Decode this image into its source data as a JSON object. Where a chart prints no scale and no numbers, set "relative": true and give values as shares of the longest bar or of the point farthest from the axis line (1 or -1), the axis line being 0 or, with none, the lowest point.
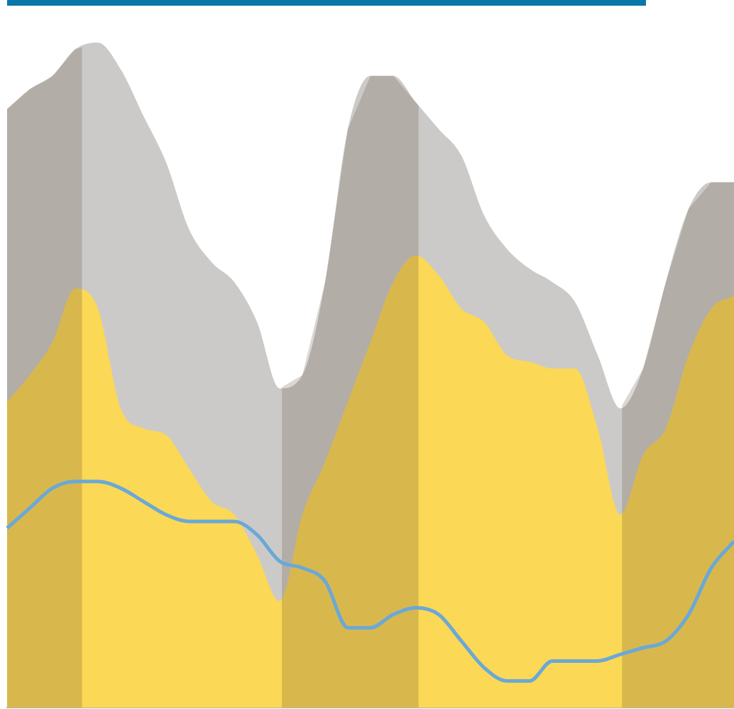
{
  "chart_data": {
    "type": "area",
    "relative": true,
    "categories": [
      null,
      null,
      null,
      null,
      null,
      null,
      null,
      null,
      null,
      null,
      null,
      null,
      null,
      null,
      null,
      null,
      null,
      null,
      null,
      null,
      null,
      null,
      null,
      null,
      null,
      null,
      null,
      null,
      null,
      null,
      null,
      null,
      null
    ],
    "series": [
      {
        "color": "#cccac8",
        "values": [
          0.9,
          0.93,
          0.95,
          0.99,
          1.0,
          0.96,
          0.89,
          0.82,
          0.72,
          0.67,
          0.64,
          0.58,
          0.48,
          0.5,
          0.64,
          0.87,
          0.95,
          0.95,
          0.91,
          0.87,
          0.83,
          0.74,
          0.69,
          0.66,
          0.64,
          0.61,
          0.53,
          0.45,
          0.51,
          0.64,
          0.75,
          0.79,
          0.79
        ]
      },
      {
        "color": "#fbd855",
        "values": [
          0.46,
          0.5,
          0.55,
          0.63,
          0.6,
          0.45,
          0.42,
          0.41,
          0.36,
          0.31,
          0.29,
          0.23,
          0.16,
          0.29,
          0.37,
          0.46,
          0.55,
          0.64,
          0.68,
          0.65,
          0.6,
          0.58,
          0.53,
          0.52,
          0.51,
          0.51,
          0.42,
          0.29,
          0.38,
          0.42,
          0.53,
          0.6,
          0.62
        ]
      },
      {
        "type": "line",
        "color": "#6aa8d8",
        "values": [
          0.27,
          0.3,
          0.33,
          0.34,
          0.34,
          0.33,
          0.31,
          0.29,
          0.28,
          0.28,
          0.28,
          0.26,
          0.22,
          0.21,
          0.19,
          0.12,
          0.12,
          0.14,
          0.15,
          0.14,
          0.1,
          0.06,
          0.04,
          0.04,
          0.07,
          0.07,
          0.07,
          0.08,
          0.09,
          0.1,
          0.14,
          0.21,
          0.25
        ]
      }
    ]
  }
}
